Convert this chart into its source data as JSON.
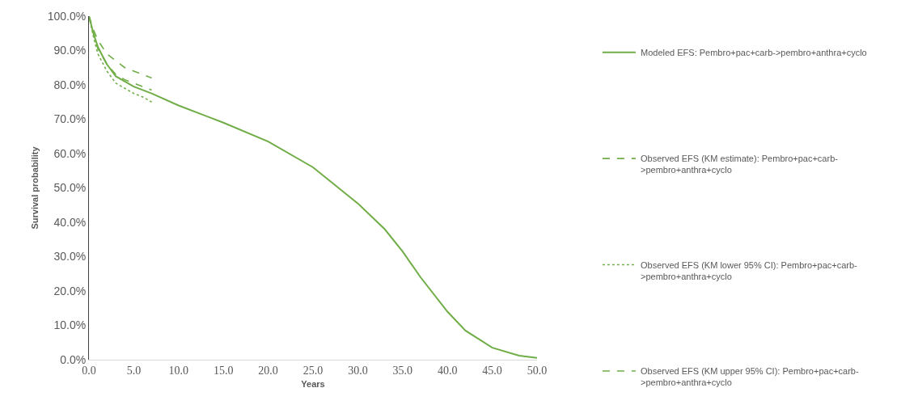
{
  "chart_data": {
    "type": "line",
    "xlabel": "Years",
    "ylabel": "Survival probability",
    "xlim": [
      0,
      50
    ],
    "ylim": [
      0,
      100
    ],
    "xticks": [
      {
        "value": 0,
        "label": "0.0"
      },
      {
        "value": 5,
        "label": "5.0"
      },
      {
        "value": 10,
        "label": "10.0"
      },
      {
        "value": 15,
        "label": "15.0"
      },
      {
        "value": 20,
        "label": "20.0"
      },
      {
        "value": 25,
        "label": "25.0"
      },
      {
        "value": 30,
        "label": "30.0"
      },
      {
        "value": 35,
        "label": "35.0"
      },
      {
        "value": 40,
        "label": "40.0"
      },
      {
        "value": 45,
        "label": "45.0"
      },
      {
        "value": 50,
        "label": "50.0"
      }
    ],
    "yticks": [
      {
        "value": 0,
        "label": "0.0%"
      },
      {
        "value": 10,
        "label": "10.0%"
      },
      {
        "value": 20,
        "label": "20.0%"
      },
      {
        "value": 30,
        "label": "30.0%"
      },
      {
        "value": 40,
        "label": "40.0%"
      },
      {
        "value": 50,
        "label": "50.0%"
      },
      {
        "value": 60,
        "label": "60.0%"
      },
      {
        "value": 70,
        "label": "70.0%"
      },
      {
        "value": 80,
        "label": "80.0%"
      },
      {
        "value": 90,
        "label": "90.0%"
      },
      {
        "value": 100,
        "label": "100.0%"
      }
    ],
    "legend": "right",
    "marker": "none",
    "series": [
      {
        "name": "Modeled EFS: Pembro+pac+carb->pembro+anthra+cyclo",
        "color": "#70ad47",
        "line_style": "solid",
        "x": [
          0,
          0.5,
          1,
          2,
          3,
          5,
          7,
          10,
          15,
          20,
          25,
          30,
          33,
          35,
          37,
          40,
          42,
          45,
          48,
          50
        ],
        "values": [
          100,
          95,
          91,
          86,
          82.5,
          79.5,
          77.5,
          74,
          69,
          63.5,
          56,
          45.5,
          38,
          31.5,
          24,
          14,
          8.5,
          3.5,
          1.2,
          0.5
        ]
      },
      {
        "name": "Observed EFS (KM estimate): Pembro+pac+carb->pembro+anthra+cyclo",
        "color": "#70ad47",
        "line_style": "dashed",
        "x": [
          0,
          0.5,
          1,
          2,
          3,
          4,
          5,
          6,
          7
        ],
        "values": [
          100,
          95,
          90.5,
          86,
          83,
          81.5,
          80.5,
          79.5,
          78.5
        ]
      },
      {
        "name": "Observed EFS (KM lower 95% CI): Pembro+pac+carb->pembro+anthra+cyclo",
        "color": "#70ad47",
        "line_style": "dotted",
        "x": [
          0,
          0.5,
          1,
          2,
          3,
          4,
          5,
          6,
          7
        ],
        "values": [
          100,
          94,
          89,
          84,
          80.5,
          79,
          77.5,
          76.5,
          75
        ]
      },
      {
        "name": "Observed EFS (KM upper 95% CI): Pembro+pac+carb->pembro+anthra+cyclo",
        "color": "#70ad47",
        "line_style": "dashed",
        "x": [
          0,
          0.5,
          1,
          2,
          3,
          4,
          5,
          6,
          7
        ],
        "values": [
          100,
          96,
          93,
          89,
          87,
          85,
          84,
          83,
          82
        ]
      }
    ]
  }
}
